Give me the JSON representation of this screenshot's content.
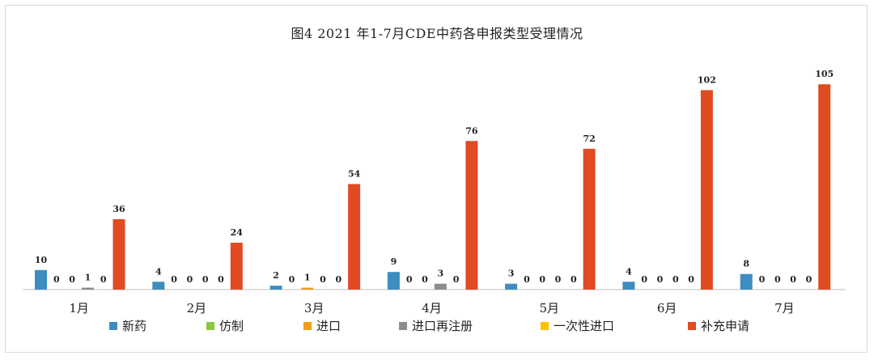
{
  "chart_data": {
    "type": "bar",
    "title": "图4  2021 年1-7月CDE中药各申报类型受理情况",
    "categories": [
      "1月",
      "2月",
      "3月",
      "4月",
      "5月",
      "6月",
      "7月"
    ],
    "series": [
      {
        "name": "新药",
        "color": "#3d8dbf",
        "values": [
          10,
          4,
          2,
          9,
          3,
          4,
          8
        ]
      },
      {
        "name": "仿制",
        "color": "#8dc63f",
        "values": [
          0,
          0,
          0,
          0,
          0,
          0,
          0
        ]
      },
      {
        "name": "进口",
        "color": "#f39c1a",
        "values": [
          0,
          0,
          1,
          0,
          0,
          0,
          0
        ]
      },
      {
        "name": "进口再注册",
        "color": "#8c8c8c",
        "values": [
          1,
          0,
          0,
          3,
          0,
          0,
          0
        ]
      },
      {
        "name": "一次性进口",
        "color": "#ffc000",
        "values": [
          0,
          0,
          0,
          0,
          0,
          0,
          0
        ]
      },
      {
        "name": "补充申请",
        "color": "#e04b22",
        "values": [
          36,
          24,
          54,
          76,
          72,
          102,
          105
        ]
      }
    ],
    "ylim": [
      0,
      115
    ],
    "xlabel": "",
    "ylabel": "",
    "grid": false,
    "legend_position": "bottom"
  }
}
